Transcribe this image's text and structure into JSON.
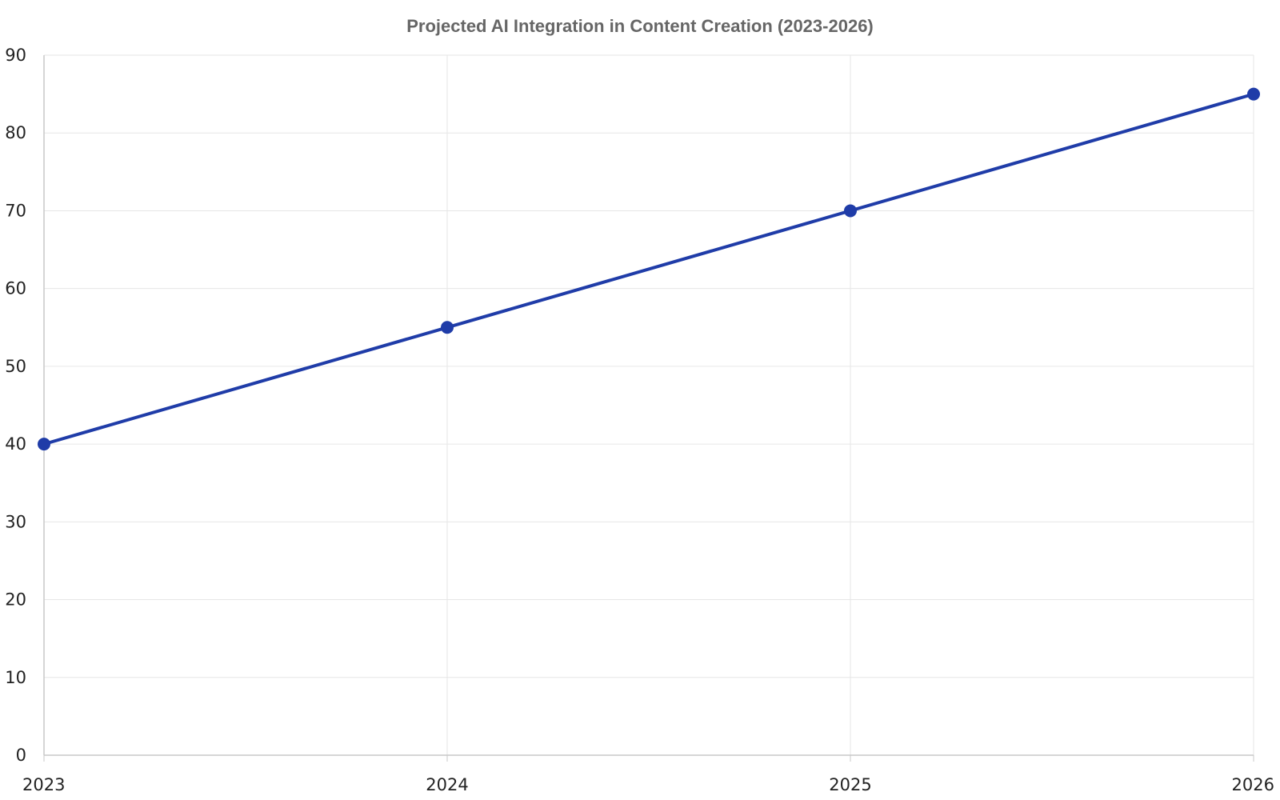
{
  "chart_data": {
    "type": "line",
    "title": "Projected AI Integration in Content Creation (2023-2026)",
    "xlabel": "",
    "ylabel": "",
    "categories": [
      "2023",
      "2024",
      "2025",
      "2026"
    ],
    "series": [
      {
        "values": [
          40,
          55,
          70,
          85
        ],
        "color": "#1f3ca8"
      }
    ],
    "ylim": [
      0,
      90
    ],
    "yticks": [
      0,
      10,
      20,
      30,
      40,
      50,
      60,
      70,
      80,
      90
    ],
    "grid": true,
    "legend": "none",
    "colors": {
      "line": "#1f3ca8",
      "grid": "#e6e6e6",
      "axis": "#c8c8c8",
      "title": "#666666",
      "tick": "#222222"
    }
  }
}
